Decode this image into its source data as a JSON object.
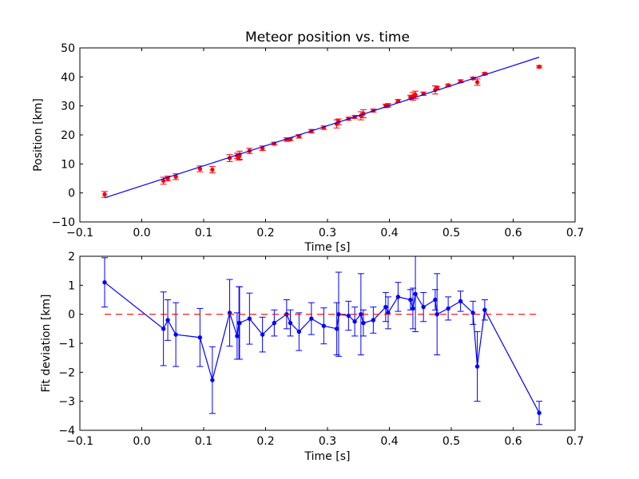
{
  "chart_data": [
    {
      "type": "scatter",
      "title": "Meteor position vs. time",
      "xlabel": "Time [s]",
      "ylabel": "Position [km]",
      "xlim": [
        -0.1,
        0.7
      ],
      "ylim": [
        -10,
        50
      ],
      "xticks": [
        -0.1,
        0.0,
        0.1,
        0.2,
        0.3,
        0.4,
        0.5,
        0.6,
        0.7
      ],
      "xtick_labels": [
        "−0.1",
        "0.0",
        "0.1",
        "0.2",
        "0.3",
        "0.4",
        "0.5",
        "0.6",
        "0.7"
      ],
      "yticks": [
        -10,
        0,
        10,
        20,
        30,
        40,
        50
      ],
      "ytick_labels": [
        "−10",
        "0",
        "10",
        "20",
        "30",
        "40",
        "50"
      ],
      "grid": false,
      "series": [
        {
          "kind": "errorbar-points",
          "color": "#ff0000",
          "points": [
            {
              "x": -0.06,
              "y": -0.5,
              "err": 1.0
            },
            {
              "x": 0.035,
              "y": 4.2,
              "err": 1.2
            },
            {
              "x": 0.042,
              "y": 5.0,
              "err": 0.8
            },
            {
              "x": 0.055,
              "y": 5.6,
              "err": 1.0
            },
            {
              "x": 0.094,
              "y": 8.3,
              "err": 1.0
            },
            {
              "x": 0.114,
              "y": 8.0,
              "err": 1.1
            },
            {
              "x": 0.142,
              "y": 12.0,
              "err": 1.2
            },
            {
              "x": 0.154,
              "y": 12.8,
              "err": 0.9
            },
            {
              "x": 0.157,
              "y": 12.5,
              "err": 1.2
            },
            {
              "x": 0.158,
              "y": 13.0,
              "err": 1.4
            },
            {
              "x": 0.174,
              "y": 14.5,
              "err": 0.9
            },
            {
              "x": 0.195,
              "y": 15.4,
              "err": 0.8
            },
            {
              "x": 0.214,
              "y": 17.0,
              "err": 0.5
            },
            {
              "x": 0.234,
              "y": 18.4,
              "err": 0.6
            },
            {
              "x": 0.24,
              "y": 18.5,
              "err": 0.5
            },
            {
              "x": 0.254,
              "y": 19.5,
              "err": 0.6
            },
            {
              "x": 0.274,
              "y": 21.3,
              "err": 0.6
            },
            {
              "x": 0.294,
              "y": 22.5,
              "err": 0.6
            },
            {
              "x": 0.315,
              "y": 23.8,
              "err": 1.4
            },
            {
              "x": 0.318,
              "y": 24.5,
              "err": 1.0
            },
            {
              "x": 0.334,
              "y": 25.6,
              "err": 0.5
            },
            {
              "x": 0.344,
              "y": 26.2,
              "err": 0.5
            },
            {
              "x": 0.354,
              "y": 26.6,
              "err": 1.4
            },
            {
              "x": 0.358,
              "y": 27.3,
              "err": 1.4
            },
            {
              "x": 0.374,
              "y": 28.4,
              "err": 0.5
            },
            {
              "x": 0.394,
              "y": 30.0,
              "err": 0.6
            },
            {
              "x": 0.398,
              "y": 30.2,
              "err": 0.6
            },
            {
              "x": 0.414,
              "y": 31.7,
              "err": 0.5
            },
            {
              "x": 0.434,
              "y": 33.0,
              "err": 0.7
            },
            {
              "x": 0.438,
              "y": 33.3,
              "err": 1.3
            },
            {
              "x": 0.442,
              "y": 33.8,
              "err": 1.3
            },
            {
              "x": 0.455,
              "y": 34.2,
              "err": 0.6
            },
            {
              "x": 0.474,
              "y": 35.5,
              "err": 1.4
            },
            {
              "x": 0.477,
              "y": 36.1,
              "err": 0.6
            },
            {
              "x": 0.495,
              "y": 37.1,
              "err": 0.4
            },
            {
              "x": 0.515,
              "y": 38.5,
              "err": 0.5
            },
            {
              "x": 0.535,
              "y": 39.5,
              "err": 0.4
            },
            {
              "x": 0.542,
              "y": 38.2,
              "err": 1.1
            },
            {
              "x": 0.554,
              "y": 41.1,
              "err": 0.4
            },
            {
              "x": 0.642,
              "y": 43.5,
              "err": 0.4
            }
          ]
        },
        {
          "kind": "fit-line",
          "color": "#0000ff",
          "points": [
            {
              "x": -0.06,
              "y": -1.7
            },
            {
              "x": 0.642,
              "y": 46.8
            }
          ]
        }
      ]
    },
    {
      "type": "line",
      "xlabel": "Time [s]",
      "ylabel": "Fit deviation [km]",
      "xlim": [
        -0.1,
        0.7
      ],
      "ylim": [
        -4,
        2
      ],
      "xticks": [
        -0.1,
        0.0,
        0.1,
        0.2,
        0.3,
        0.4,
        0.5,
        0.6,
        0.7
      ],
      "xtick_labels": [
        "−0.1",
        "0.0",
        "0.1",
        "0.2",
        "0.3",
        "0.4",
        "0.5",
        "0.6",
        "0.7"
      ],
      "yticks": [
        -4,
        -3,
        -2,
        -1,
        0,
        1,
        2
      ],
      "ytick_labels": [
        "−4",
        "−3",
        "−2",
        "−1",
        "0",
        "1",
        "2"
      ],
      "grid": false,
      "series": [
        {
          "kind": "errorbar-line",
          "color": "#0000ff",
          "points": [
            {
              "x": -0.06,
              "y": 1.1,
              "err": 0.85
            },
            {
              "x": 0.035,
              "y": -0.5,
              "err": 1.27
            },
            {
              "x": 0.042,
              "y": -0.2,
              "err": 0.7
            },
            {
              "x": 0.055,
              "y": -0.7,
              "err": 1.1
            },
            {
              "x": 0.094,
              "y": -0.8,
              "err": 1.0
            },
            {
              "x": 0.114,
              "y": -2.27,
              "err": 1.15
            },
            {
              "x": 0.142,
              "y": 0.05,
              "err": 1.15
            },
            {
              "x": 0.154,
              "y": -0.75,
              "err": 0.8
            },
            {
              "x": 0.157,
              "y": -0.3,
              "err": 1.25
            },
            {
              "x": 0.158,
              "y": -0.3,
              "err": 1.25
            },
            {
              "x": 0.174,
              "y": -0.15,
              "err": 0.88
            },
            {
              "x": 0.195,
              "y": -0.7,
              "err": 0.6
            },
            {
              "x": 0.214,
              "y": -0.3,
              "err": 0.45
            },
            {
              "x": 0.234,
              "y": 0.0,
              "err": 0.5
            },
            {
              "x": 0.24,
              "y": -0.3,
              "err": 0.45
            },
            {
              "x": 0.254,
              "y": -0.6,
              "err": 0.65
            },
            {
              "x": 0.274,
              "y": -0.15,
              "err": 0.55
            },
            {
              "x": 0.294,
              "y": -0.4,
              "err": 0.62
            },
            {
              "x": 0.315,
              "y": -0.5,
              "err": 0.9
            },
            {
              "x": 0.318,
              "y": 0.0,
              "err": 1.45
            },
            {
              "x": 0.334,
              "y": -0.05,
              "err": 0.5
            },
            {
              "x": 0.344,
              "y": -0.25,
              "err": 0.5
            },
            {
              "x": 0.354,
              "y": 0.0,
              "err": 1.4
            },
            {
              "x": 0.358,
              "y": -0.3,
              "err": 0.45
            },
            {
              "x": 0.374,
              "y": -0.2,
              "err": 0.45
            },
            {
              "x": 0.394,
              "y": 0.25,
              "err": 0.5
            },
            {
              "x": 0.398,
              "y": 0.05,
              "err": 0.55
            },
            {
              "x": 0.414,
              "y": 0.6,
              "err": 0.5
            },
            {
              "x": 0.434,
              "y": 0.5,
              "err": 0.35
            },
            {
              "x": 0.438,
              "y": 0.2,
              "err": 0.7
            },
            {
              "x": 0.442,
              "y": 0.7,
              "err": 1.3
            },
            {
              "x": 0.455,
              "y": 0.25,
              "err": 0.5
            },
            {
              "x": 0.474,
              "y": 0.5,
              "err": 0.35
            },
            {
              "x": 0.477,
              "y": 0.0,
              "err": 1.4
            },
            {
              "x": 0.495,
              "y": 0.2,
              "err": 0.4
            },
            {
              "x": 0.515,
              "y": 0.45,
              "err": 0.35
            },
            {
              "x": 0.535,
              "y": 0.05,
              "err": 0.4
            },
            {
              "x": 0.542,
              "y": -1.8,
              "err": 1.2
            },
            {
              "x": 0.554,
              "y": 0.15,
              "err": 0.35
            },
            {
              "x": 0.642,
              "y": -3.4,
              "err": 0.4
            }
          ]
        },
        {
          "kind": "reference-line",
          "color": "#ff0000",
          "dashed": true,
          "points": [
            {
              "x": -0.06,
              "y": 0
            },
            {
              "x": 0.642,
              "y": 0
            }
          ]
        }
      ]
    }
  ]
}
